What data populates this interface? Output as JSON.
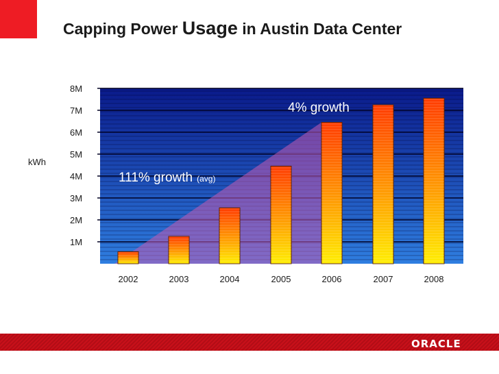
{
  "slide": {
    "title_a": "Capping Power",
    "title_b": "Usage",
    "title_c": "in Austin Data Center",
    "logo": "ORACLE",
    "accent": "#ee1c24"
  },
  "chart_data": {
    "type": "bar",
    "title": "Capping Power Usage in Austin Data Center",
    "ylabel": "kWh",
    "xlabel": "",
    "categories": [
      "2002",
      "2003",
      "2004",
      "2005",
      "2006",
      "2007",
      "2008"
    ],
    "values": [
      0.55,
      1.25,
      2.55,
      4.45,
      6.45,
      7.25,
      7.55
    ],
    "ylim": [
      0,
      8
    ],
    "yticks": [
      1,
      2,
      3,
      4,
      5,
      6,
      7,
      8
    ],
    "ytick_labels": [
      "1M",
      "2M",
      "3M",
      "4M",
      "5M",
      "6M",
      "7M",
      "8M"
    ],
    "grid": true,
    "annotations": {
      "growth1_main": "111% growth",
      "growth1_sub": "(avg)",
      "growth2": "4% growth"
    }
  }
}
